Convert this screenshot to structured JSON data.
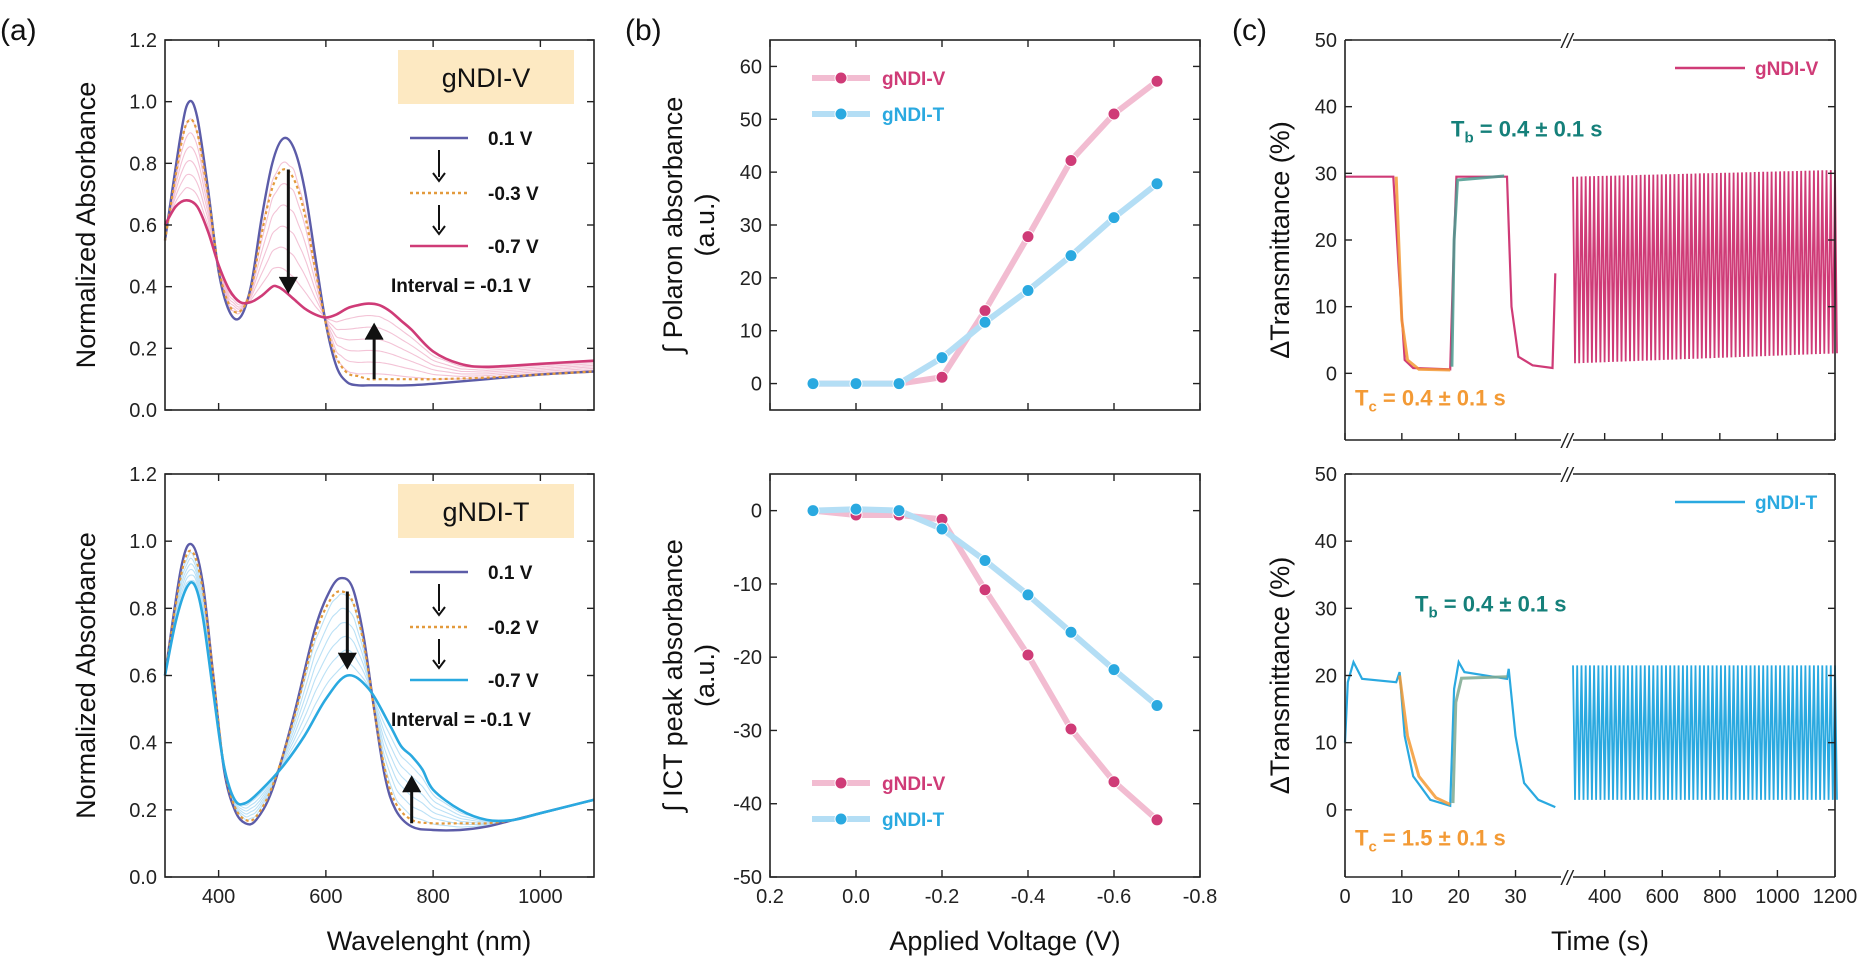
{
  "panel_labels": [
    "(a)",
    "(b)",
    "(c)"
  ],
  "colors": {
    "v_pink": "#cf3b77",
    "v_light": "#f2bcd1",
    "t_blue": "#2aa9e0",
    "t_light": "#b4def5",
    "start_purple": "#5c5ca8",
    "dotted_orange": "#e39a3c",
    "fit_orange": "#f39a35",
    "tb_teal": "#15807a",
    "axis": "#222222"
  },
  "chart_data": [
    {
      "id": "a_top",
      "type": "line",
      "xlabel": "",
      "ylabel": "Normalized Absorbance",
      "xlim": [
        300,
        1100
      ],
      "ylim": [
        0,
        1.2
      ],
      "yticks": [
        "0.0",
        "0.2",
        "0.4",
        "0.6",
        "0.8",
        "1.0",
        "1.2"
      ],
      "xticks": [],
      "box_label": "gNDI-V",
      "legend": [
        {
          "label": "0.1 V",
          "style": "solid",
          "color": "#5c5ca8"
        },
        {
          "label": "-0.3 V",
          "style": "dotted",
          "color": "#e39a3c"
        },
        {
          "label": "-0.7 V",
          "style": "solid",
          "color": "#cf3b77"
        }
      ],
      "annotation": "Interval = -0.1 V",
      "series": [
        {
          "name": "0.1 V",
          "x": [
            300,
            330,
            345,
            360,
            380,
            400,
            420,
            440,
            460,
            480,
            500,
            520,
            540,
            560,
            580,
            600,
            620,
            640,
            660,
            680,
            700,
            750,
            800,
            900,
            1000,
            1100
          ],
          "y": [
            0.55,
            0.9,
            1.0,
            0.95,
            0.72,
            0.45,
            0.32,
            0.3,
            0.4,
            0.62,
            0.8,
            0.88,
            0.85,
            0.72,
            0.5,
            0.28,
            0.14,
            0.09,
            0.08,
            0.08,
            0.08,
            0.08,
            0.085,
            0.1,
            0.115,
            0.125
          ]
        },
        {
          "name": "-0.3 V",
          "x": [
            300,
            330,
            345,
            360,
            380,
            400,
            420,
            440,
            460,
            480,
            500,
            520,
            540,
            560,
            580,
            600,
            620,
            640,
            660,
            680,
            700,
            750,
            800,
            900,
            1000,
            1100
          ],
          "y": [
            0.55,
            0.86,
            0.94,
            0.9,
            0.7,
            0.46,
            0.34,
            0.32,
            0.39,
            0.57,
            0.72,
            0.78,
            0.75,
            0.64,
            0.46,
            0.28,
            0.17,
            0.12,
            0.11,
            0.1,
            0.1,
            0.1,
            0.1,
            0.105,
            0.115,
            0.125
          ]
        },
        {
          "name": "-0.7 V",
          "x": [
            300,
            320,
            340,
            360,
            380,
            400,
            420,
            440,
            460,
            480,
            500,
            510,
            520,
            540,
            560,
            580,
            600,
            620,
            640,
            660,
            680,
            700,
            720,
            740,
            760,
            800,
            850,
            900,
            1000,
            1100
          ],
          "y": [
            0.6,
            0.66,
            0.68,
            0.66,
            0.58,
            0.47,
            0.39,
            0.35,
            0.35,
            0.37,
            0.4,
            0.4,
            0.39,
            0.36,
            0.33,
            0.31,
            0.3,
            0.31,
            0.33,
            0.34,
            0.345,
            0.34,
            0.32,
            0.29,
            0.26,
            0.19,
            0.15,
            0.14,
            0.15,
            0.16
          ]
        }
      ]
    },
    {
      "id": "a_bottom",
      "type": "line",
      "xlabel": "Wavelenght (nm)",
      "ylabel": "Normalized Absorbance",
      "xlim": [
        300,
        1100
      ],
      "ylim": [
        0,
        1.2
      ],
      "yticks": [
        "0.0",
        "0.2",
        "0.4",
        "0.6",
        "0.8",
        "1.0",
        "1.2"
      ],
      "xticks": [
        "400",
        "600",
        "800",
        "1000"
      ],
      "box_label": "gNDI-T",
      "legend": [
        {
          "label": "0.1 V",
          "style": "solid",
          "color": "#5c5ca8"
        },
        {
          "label": "-0.2 V",
          "style": "dotted",
          "color": "#e39a3c"
        },
        {
          "label": "-0.7 V",
          "style": "solid",
          "color": "#2aa9e0"
        }
      ],
      "annotation": "Interval = -0.1 V",
      "series": [
        {
          "name": "0.1 V",
          "x": [
            300,
            330,
            350,
            370,
            390,
            410,
            430,
            450,
            470,
            500,
            540,
            580,
            610,
            630,
            650,
            670,
            690,
            710,
            730,
            760,
            800,
            850,
            900,
            950,
            1000,
            1050,
            1100
          ],
          "y": [
            0.6,
            0.92,
            0.99,
            0.88,
            0.6,
            0.32,
            0.2,
            0.16,
            0.17,
            0.26,
            0.48,
            0.74,
            0.86,
            0.89,
            0.86,
            0.72,
            0.5,
            0.3,
            0.2,
            0.15,
            0.14,
            0.14,
            0.15,
            0.17,
            0.19,
            0.21,
            0.23
          ]
        },
        {
          "name": "-0.2 V",
          "x": [
            300,
            330,
            350,
            370,
            390,
            410,
            430,
            450,
            470,
            500,
            540,
            580,
            610,
            630,
            650,
            670,
            690,
            710,
            730,
            760,
            800,
            850,
            900,
            950,
            1000,
            1050,
            1100
          ],
          "y": [
            0.6,
            0.9,
            0.97,
            0.86,
            0.6,
            0.33,
            0.21,
            0.17,
            0.18,
            0.27,
            0.47,
            0.72,
            0.83,
            0.85,
            0.82,
            0.7,
            0.5,
            0.32,
            0.22,
            0.17,
            0.16,
            0.16,
            0.16,
            0.17,
            0.19,
            0.21,
            0.23
          ]
        },
        {
          "name": "-0.7 V",
          "x": [
            300,
            320,
            340,
            355,
            370,
            390,
            410,
            430,
            450,
            480,
            520,
            560,
            600,
            640,
            680,
            720,
            740,
            760,
            780,
            800,
            850,
            900,
            950,
            1000,
            1050,
            1100
          ],
          "y": [
            0.6,
            0.76,
            0.86,
            0.87,
            0.78,
            0.55,
            0.33,
            0.23,
            0.22,
            0.26,
            0.33,
            0.42,
            0.53,
            0.6,
            0.56,
            0.45,
            0.39,
            0.36,
            0.32,
            0.26,
            0.2,
            0.17,
            0.17,
            0.19,
            0.21,
            0.23
          ]
        }
      ]
    },
    {
      "id": "b_top",
      "type": "line",
      "xlabel": "",
      "ylabel": "∫ Polaron absorbance (a.u.)",
      "ylabel_lines": [
        "∫ Polaron absorbance",
        "(a.u.)"
      ],
      "xlim": [
        0.2,
        -0.8
      ],
      "ylim": [
        -5,
        65
      ],
      "yticks": [
        "0",
        "10",
        "20",
        "30",
        "40",
        "50",
        "60"
      ],
      "xticks": [],
      "x": [
        0.1,
        0,
        -0.1,
        -0.2,
        -0.3,
        -0.4,
        -0.5,
        -0.6,
        -0.7
      ],
      "series": [
        {
          "name": "gNDI-V",
          "values": [
            0,
            0,
            0,
            1.2,
            13.8,
            27.8,
            42.2,
            51,
            57.2
          ]
        },
        {
          "name": "gNDI-T",
          "values": [
            0,
            0,
            0,
            4.9,
            11.6,
            17.6,
            24.2,
            31.4,
            37.8
          ]
        }
      ],
      "legend_placement": "top-left"
    },
    {
      "id": "b_bottom",
      "type": "line",
      "xlabel": "Applied Voltage (V)",
      "ylabel": "∫ ICT peak absorbance (a.u.)",
      "ylabel_lines": [
        "∫ ICT peak absorbance",
        "(a.u.)"
      ],
      "xlim": [
        0.2,
        -0.8
      ],
      "ylim": [
        -50,
        5
      ],
      "yticks": [
        "-50",
        "-40",
        "-30",
        "-20",
        "-10",
        "0"
      ],
      "xticks": [
        "0.2",
        "0.0",
        "-0.2",
        "-0.4",
        "-0.6",
        "-0.8"
      ],
      "x": [
        0.1,
        0,
        -0.1,
        -0.2,
        -0.3,
        -0.4,
        -0.5,
        -0.6,
        -0.7
      ],
      "series": [
        {
          "name": "gNDI-V",
          "values": [
            0,
            -0.6,
            -0.6,
            -1.2,
            -10.8,
            -19.7,
            -29.8,
            -37,
            -42.2
          ]
        },
        {
          "name": "gNDI-T",
          "values": [
            0,
            0.2,
            0,
            -2.5,
            -6.8,
            -11.5,
            -16.6,
            -21.7,
            -26.6
          ]
        }
      ],
      "legend_placement": "bottom-left"
    },
    {
      "id": "c_top",
      "type": "line",
      "xlabel": "",
      "ylabel": "ΔTransmittance (%)",
      "ylim": [
        -10,
        50
      ],
      "yticks": [
        "0",
        "10",
        "20",
        "30",
        "40",
        "50"
      ],
      "xticks": [],
      "xlim_left": [
        0,
        38
      ],
      "xlim_right": [
        290,
        1200
      ],
      "axis_break": "//",
      "series": [
        {
          "name": "gNDI-V",
          "cycle_high": 29.5,
          "cycle_low": 0.5,
          "cycles_high_end": 30.5,
          "cycles_low_end": 3
        }
      ],
      "annotations": {
        "tb": {
          "label": "T",
          "sub": "b",
          "value": " = 0.4 ± 0.1 s"
        },
        "tc": {
          "label": "T",
          "sub": "c",
          "value": " = 0.4 ± 0.1 s"
        }
      }
    },
    {
      "id": "c_bottom",
      "type": "line",
      "xlabel": "Time (s)",
      "ylabel": "ΔTransmittance (%)",
      "ylim": [
        -10,
        50
      ],
      "yticks": [
        "0",
        "10",
        "20",
        "30",
        "40",
        "50"
      ],
      "xticks_left": [
        "0",
        "10",
        "20",
        "30"
      ],
      "xticks_right": [
        "400",
        "600",
        "800",
        "1000",
        "1200"
      ],
      "xlim_left": [
        0,
        38
      ],
      "xlim_right": [
        290,
        1200
      ],
      "axis_break": "//",
      "series": [
        {
          "name": "gNDI-T",
          "cycle_high": 21.5,
          "cycle_low": 0.5,
          "cycles_high_end": 21.5,
          "cycles_low_end": 1.5
        }
      ],
      "annotations": {
        "tb": {
          "label": "T",
          "sub": "b",
          "value": " = 0.4 ± 0.1 s"
        },
        "tc": {
          "label": "T",
          "sub": "c",
          "value": " = 1.5 ± 0.1 s"
        }
      }
    }
  ]
}
